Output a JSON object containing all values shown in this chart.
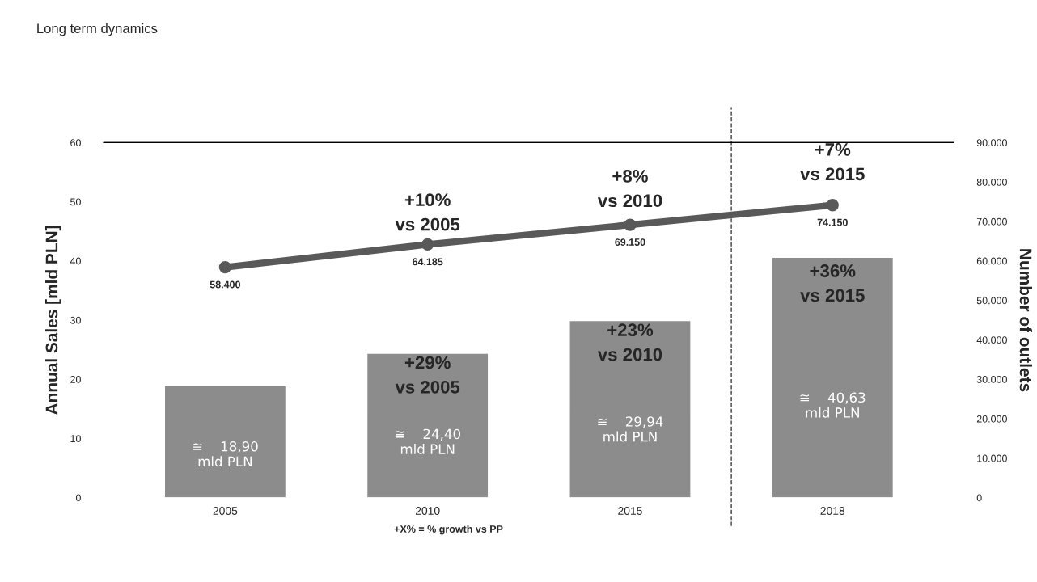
{
  "chart_data": {
    "type": "bar",
    "title": "Long term dynamics",
    "ylabel": "Annual Sales [mld PLN]",
    "y2label": "Number of outlets",
    "categories": [
      "2005",
      "2010",
      "2015",
      "2018"
    ],
    "series": [
      {
        "color": "#8c8c8c",
        "values": [
          18.9,
          24.4,
          29.94,
          40.63
        ],
        "value_labels": [
          "≅    18,90\nmld PLN",
          "≅    24,40\nmld PLN",
          "≅    29,94\nmld PLN",
          "≅    40,63\nmld PLN"
        ]
      },
      {
        "type": "line",
        "axis": "y2",
        "color": "#595959",
        "marker": "circle",
        "values": [
          58400,
          64185,
          69150,
          74150
        ],
        "value_labels": [
          "58.400",
          "64.185",
          "69.150",
          "74.150"
        ]
      }
    ],
    "ylim": [
      0,
      60
    ],
    "yticks": [
      0,
      10,
      20,
      30,
      40,
      50,
      60
    ],
    "y2lim": [
      0,
      90000
    ],
    "y2ticks": [
      0,
      {
        "value": 10000,
        "label": "10.000"
      },
      {
        "value": 20000,
        "label": "20.000"
      },
      {
        "value": 30000,
        "label": "30.000"
      },
      {
        "value": 40000,
        "label": "40.000"
      },
      {
        "value": 50000,
        "label": "50.000"
      },
      {
        "value": 60000,
        "label": "60.000"
      },
      {
        "value": 70000,
        "label": "70.000"
      },
      {
        "value": 80000,
        "label": "80.000"
      },
      {
        "value": 90000,
        "label": "90.000"
      }
    ],
    "annotations": [
      "+29%\nvs 2005",
      "+23%\nvs 2010",
      "+36%\nvs 2015",
      "+10%\nvs 2005",
      "+8%\nvs 2010",
      "+7%\nvs 2015",
      "+X% = % growth vs PP"
    ],
    "grid": false,
    "legend": false
  }
}
